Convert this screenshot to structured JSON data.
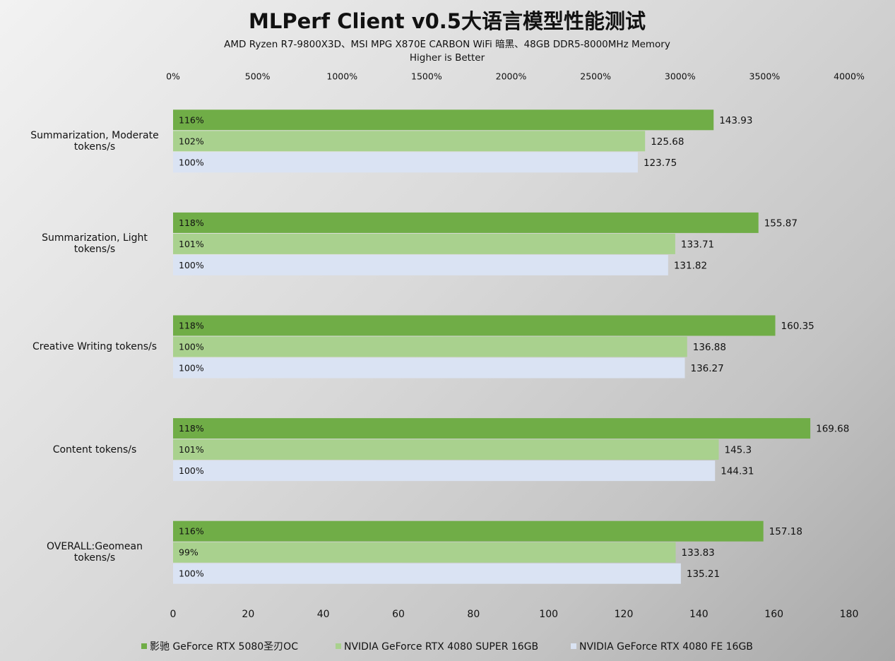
{
  "chart_data": {
    "type": "hbar",
    "title": "MLPerf Client v0.5大语言模型性能测试",
    "subtitle": "AMD Ryzen R7-9800X3D、MSI MPG X870E CARBON WiFi 暗黑、48GB DDR5-8000MHz Memory",
    "note": "Higher is Better",
    "categories": [
      "Summarization, Moderate\ntokens/s",
      "Summarization, Light\ntokens/s",
      "Creative Writing tokens/s",
      "Content tokens/s",
      "OVERALL:Geomean\ntokens/s"
    ],
    "series": [
      {
        "name": "影驰 GeForce RTX 5080圣刃OC",
        "color": "#70ad47",
        "values": [
          143.93,
          155.87,
          160.35,
          169.68,
          157.18
        ],
        "percent_labels": [
          "116%",
          "118%",
          "118%",
          "118%",
          "116%"
        ]
      },
      {
        "name": "NVIDIA GeForce RTX 4080 SUPER 16GB",
        "color": "#a9d18e",
        "values": [
          125.68,
          133.71,
          136.88,
          145.3,
          133.83
        ],
        "percent_labels": [
          "102%",
          "101%",
          "100%",
          "101%",
          "99%"
        ]
      },
      {
        "name": "NVIDIA GeForce RTX 4080 FE 16GB",
        "color": "#dae3f3",
        "values": [
          123.75,
          131.82,
          136.27,
          144.31,
          135.21
        ],
        "percent_labels": [
          "100%",
          "100%",
          "100%",
          "100%",
          "100%"
        ]
      }
    ],
    "xlim": [
      0,
      180
    ],
    "xticks": [
      0,
      20,
      40,
      60,
      80,
      100,
      120,
      140,
      160,
      180
    ],
    "x2lim": [
      0,
      4000
    ],
    "x2ticks": [
      {
        "value": 0,
        "label": "0%"
      },
      {
        "value": 500,
        "label": "500%"
      },
      {
        "value": 1000,
        "label": "1000%"
      },
      {
        "value": 1500,
        "label": "1500%"
      },
      {
        "value": 2000,
        "label": "2000%"
      },
      {
        "value": 2500,
        "label": "2500%"
      },
      {
        "value": 3000,
        "label": "3000%"
      },
      {
        "value": 3500,
        "label": "3500%"
      },
      {
        "value": 4000,
        "label": "4000%"
      }
    ]
  }
}
